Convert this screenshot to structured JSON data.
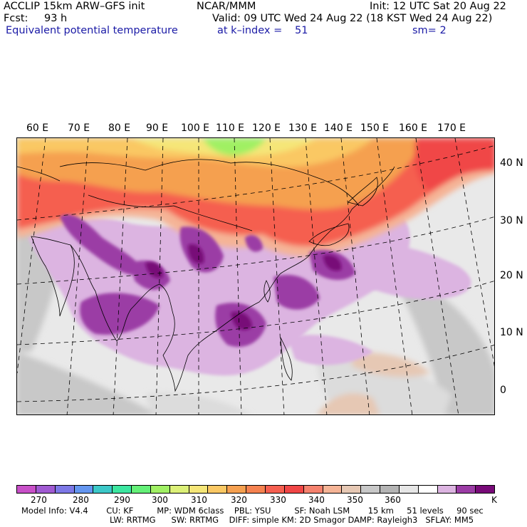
{
  "header": {
    "model": "ACCLIP 15km ARW–GFS init",
    "org": "NCAR/MMM",
    "init": "Init: 12 UTC Sat 20 Aug 22",
    "fcst_label": "Fcst:",
    "fcst_value": "93 h",
    "valid": "Valid: 09 UTC Wed 24 Aug 22 (18 KST Wed 24 Aug 22)",
    "field": "Equivalent potential temperature",
    "level": "at k–index =",
    "level_value": "51",
    "smooth": "sm= 2"
  },
  "map": {
    "lon_labels": [
      "60 E",
      "70 E",
      "80 E",
      "90 E",
      "100 E",
      "110 E",
      "120 E",
      "130 E",
      "140 E",
      "150 E",
      "160 E",
      "170 E"
    ],
    "lat_labels": [
      "40 N",
      "30 N",
      "20 N",
      "10 N",
      "0"
    ]
  },
  "colorbar": {
    "colors": [
      "#c850c8",
      "#a05ad2",
      "#7d78e6",
      "#6496f0",
      "#3cc8c8",
      "#3ce6a0",
      "#64f078",
      "#a0f064",
      "#dcf078",
      "#f5e678",
      "#fac864",
      "#f5a050",
      "#f58250",
      "#f55f50",
      "#f04646",
      "#f5826e",
      "#f5b496",
      "#e6c8b4",
      "#c8c8c8",
      "#b4b4b4",
      "#e6e6e6",
      "#ffffff",
      "#dcb4e1",
      "#9b3ca5",
      "#780a78"
    ],
    "ticks": [
      "270",
      "280",
      "290",
      "300",
      "310",
      "320",
      "330",
      "340",
      "350",
      "360",
      "K"
    ]
  },
  "footer": {
    "line1": "Model Info: V4.4       CU: KF         MP: WDM 6class    PBL: YSU         SF: Noah LSM       15 km     51 levels     90 sec",
    "line2": "LW: RRTMG      SW: RRTMG    DIFF: simple KM: 2D Smagor DAMP: Rayleigh3   SFLAY: MM5"
  }
}
